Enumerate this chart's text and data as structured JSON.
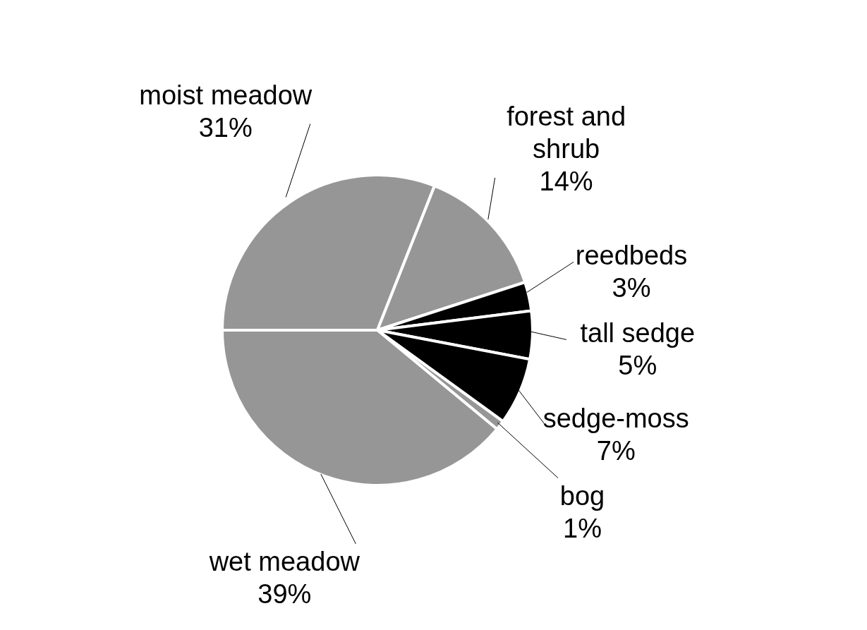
{
  "chart_data": {
    "type": "pie",
    "categories": [
      "moist meadow",
      "forest and shrub",
      "reedbeds",
      "tall sedge",
      "sedge-moss",
      "bog",
      "wet meadow"
    ],
    "values": [
      31,
      14,
      3,
      5,
      7,
      1,
      39
    ],
    "value_labels": [
      "31%",
      "14%",
      "3%",
      "5%",
      "7%",
      "1%",
      "39%"
    ],
    "colors": [
      "#969696",
      "#969696",
      "#000000",
      "#000000",
      "#000000",
      "#969696",
      "#969696"
    ]
  }
}
